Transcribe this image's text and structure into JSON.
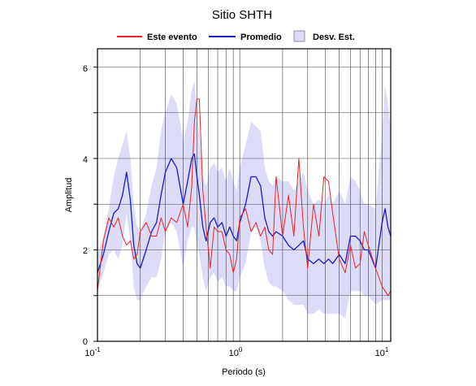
{
  "chart_data": {
    "type": "line",
    "title": "Sitio SHTH",
    "xlabel": "Periodo (s)",
    "ylabel": "Amplitud",
    "xscale": "log",
    "xlim": [
      0.1,
      11.5
    ],
    "ylim": [
      0,
      6.4
    ],
    "x_ticks": [
      {
        "base": "10",
        "exp": "-1"
      },
      {
        "base": "10",
        "exp": "0"
      },
      {
        "base": "10",
        "exp": "1"
      }
    ],
    "y_ticks": [
      "0",
      "2",
      "4",
      "6"
    ],
    "grid": true,
    "legend_position": "top",
    "legend": [
      "Este evento",
      "Promedio",
      "Desv. Est."
    ],
    "series": [
      {
        "name": "Este evento",
        "color": "#ee2222",
        "x": [
          0.1,
          0.11,
          0.12,
          0.13,
          0.14,
          0.15,
          0.16,
          0.17,
          0.18,
          0.19,
          0.2,
          0.22,
          0.24,
          0.26,
          0.28,
          0.3,
          0.33,
          0.36,
          0.4,
          0.43,
          0.46,
          0.48,
          0.5,
          0.52,
          0.55,
          0.58,
          0.62,
          0.66,
          0.7,
          0.75,
          0.8,
          0.85,
          0.9,
          0.95,
          1.0,
          1.1,
          1.2,
          1.3,
          1.4,
          1.5,
          1.6,
          1.7,
          1.8,
          2.0,
          2.2,
          2.4,
          2.6,
          2.8,
          3.0,
          3.3,
          3.6,
          3.9,
          4.2,
          4.5,
          5.0,
          5.5,
          6.0,
          6.5,
          7.0,
          7.5,
          8.0,
          9.0,
          10.0,
          11.0,
          11.5
        ],
        "values": [
          1.1,
          2.2,
          2.7,
          2.5,
          2.7,
          2.3,
          2.1,
          2.2,
          1.8,
          1.9,
          2.4,
          2.6,
          2.3,
          2.3,
          2.7,
          2.4,
          2.7,
          2.6,
          3.0,
          2.5,
          3.4,
          4.8,
          5.3,
          5.3,
          3.3,
          2.5,
          1.6,
          2.5,
          2.4,
          2.4,
          2.0,
          1.9,
          1.5,
          1.8,
          2.7,
          2.9,
          2.4,
          2.6,
          2.3,
          2.5,
          2.0,
          1.9,
          3.6,
          2.3,
          3.2,
          2.3,
          4.0,
          2.5,
          1.6,
          3.0,
          2.3,
          3.6,
          3.5,
          2.8,
          1.8,
          1.5,
          2.1,
          1.6,
          1.7,
          2.4,
          2.1,
          1.6,
          1.2,
          1.0,
          1.1
        ]
      },
      {
        "name": "Promedio",
        "color": "#1a1acc",
        "x": [
          0.1,
          0.11,
          0.12,
          0.13,
          0.14,
          0.15,
          0.16,
          0.17,
          0.18,
          0.19,
          0.2,
          0.22,
          0.24,
          0.26,
          0.28,
          0.3,
          0.33,
          0.36,
          0.4,
          0.43,
          0.46,
          0.48,
          0.5,
          0.52,
          0.55,
          0.58,
          0.62,
          0.66,
          0.7,
          0.75,
          0.8,
          0.85,
          0.9,
          0.95,
          1.0,
          1.1,
          1.2,
          1.3,
          1.4,
          1.5,
          1.6,
          1.7,
          1.8,
          2.0,
          2.2,
          2.4,
          2.6,
          2.8,
          3.0,
          3.3,
          3.6,
          3.9,
          4.2,
          4.5,
          5.0,
          5.5,
          6.0,
          6.5,
          7.0,
          7.5,
          8.0,
          9.0,
          10.0,
          10.5,
          11.0,
          11.5
        ],
        "values": [
          1.5,
          1.9,
          2.4,
          2.8,
          2.9,
          3.2,
          3.7,
          3.1,
          2.1,
          1.7,
          1.6,
          2.0,
          2.4,
          2.6,
          3.2,
          3.7,
          4.0,
          3.8,
          3.0,
          3.5,
          4.0,
          4.1,
          3.6,
          3.2,
          2.5,
          2.2,
          2.6,
          2.7,
          2.5,
          2.6,
          2.3,
          2.5,
          2.3,
          2.2,
          2.6,
          3.0,
          3.6,
          3.6,
          3.4,
          2.7,
          2.4,
          2.3,
          2.4,
          2.3,
          2.1,
          2.0,
          2.1,
          2.2,
          1.8,
          1.7,
          1.8,
          1.7,
          1.8,
          1.7,
          1.9,
          1.7,
          2.3,
          2.3,
          2.2,
          2.0,
          2.0,
          1.6,
          2.6,
          2.9,
          2.5,
          2.3
        ]
      },
      {
        "name": "Desv. Est.",
        "color": "#dcdcf8",
        "x": [
          0.1,
          0.11,
          0.12,
          0.13,
          0.14,
          0.15,
          0.16,
          0.17,
          0.18,
          0.19,
          0.2,
          0.22,
          0.24,
          0.26,
          0.28,
          0.3,
          0.33,
          0.36,
          0.4,
          0.43,
          0.46,
          0.48,
          0.5,
          0.52,
          0.55,
          0.58,
          0.62,
          0.66,
          0.7,
          0.75,
          0.8,
          0.85,
          0.9,
          0.95,
          1.0,
          1.1,
          1.2,
          1.3,
          1.4,
          1.5,
          1.6,
          1.7,
          1.8,
          2.0,
          2.2,
          2.4,
          2.6,
          2.8,
          3.0,
          3.3,
          3.6,
          3.9,
          4.2,
          4.5,
          5.0,
          5.5,
          6.0,
          6.5,
          7.0,
          7.5,
          8.0,
          9.0,
          10.0,
          10.5,
          11.0,
          11.5
        ],
        "upper": [
          1.9,
          2.3,
          2.9,
          3.6,
          4.0,
          4.3,
          4.6,
          4.0,
          3.0,
          2.5,
          2.4,
          2.8,
          3.4,
          3.8,
          4.6,
          5.0,
          5.4,
          5.2,
          4.4,
          4.8,
          5.5,
          5.7,
          5.1,
          4.5,
          3.6,
          3.4,
          3.8,
          3.9,
          3.7,
          3.8,
          3.5,
          3.8,
          3.5,
          3.3,
          3.8,
          4.3,
          4.8,
          4.7,
          4.6,
          3.8,
          3.5,
          3.4,
          3.6,
          3.5,
          3.5,
          3.3,
          3.5,
          3.7,
          3.3,
          3.0,
          3.1,
          3.0,
          3.2,
          3.0,
          3.3,
          3.0,
          3.6,
          3.5,
          3.3,
          3.0,
          3.0,
          2.9,
          4.6,
          5.6,
          5.2,
          4.6
        ],
        "lower": [
          1.1,
          1.5,
          1.9,
          2.0,
          1.8,
          2.1,
          2.8,
          2.2,
          1.2,
          0.9,
          0.9,
          1.2,
          1.4,
          1.4,
          1.8,
          2.4,
          2.6,
          2.4,
          1.6,
          2.2,
          2.5,
          2.5,
          2.1,
          1.9,
          1.4,
          1.1,
          1.4,
          1.5,
          1.3,
          1.4,
          1.2,
          1.2,
          1.1,
          1.1,
          1.4,
          1.7,
          2.4,
          2.5,
          2.2,
          1.6,
          1.3,
          1.2,
          1.2,
          1.1,
          0.9,
          0.8,
          0.8,
          0.8,
          0.6,
          0.6,
          0.7,
          0.6,
          0.6,
          0.6,
          0.6,
          0.5,
          1.1,
          1.1,
          1.1,
          1.0,
          1.0,
          0.8,
          0.9,
          0.9,
          0.9,
          0.9
        ]
      }
    ]
  }
}
